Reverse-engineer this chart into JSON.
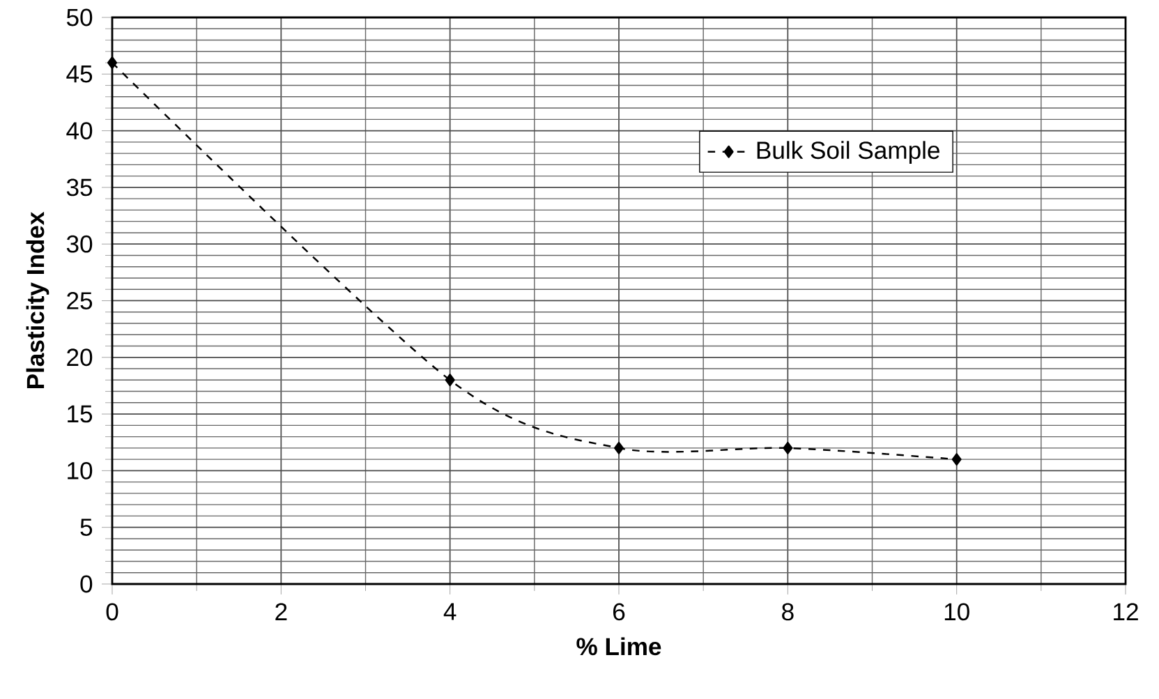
{
  "chart_data": {
    "type": "line",
    "xlabel": "% Lime",
    "ylabel": "Plasticity Index",
    "x": [
      0,
      4,
      6,
      8,
      10
    ],
    "series": [
      {
        "name": "Bulk Soil Sample",
        "color": "#000000",
        "values": [
          46,
          18,
          12,
          12,
          11
        ]
      }
    ],
    "xlim": [
      0,
      12
    ],
    "ylim": [
      0,
      50
    ],
    "xticks": [
      0,
      2,
      4,
      6,
      8,
      10,
      12
    ],
    "yticks": [
      0,
      5,
      10,
      15,
      20,
      25,
      30,
      35,
      40,
      45,
      50
    ],
    "grid": true,
    "legend": "top right",
    "marker": "diamond",
    "line_style": "dashed"
  }
}
